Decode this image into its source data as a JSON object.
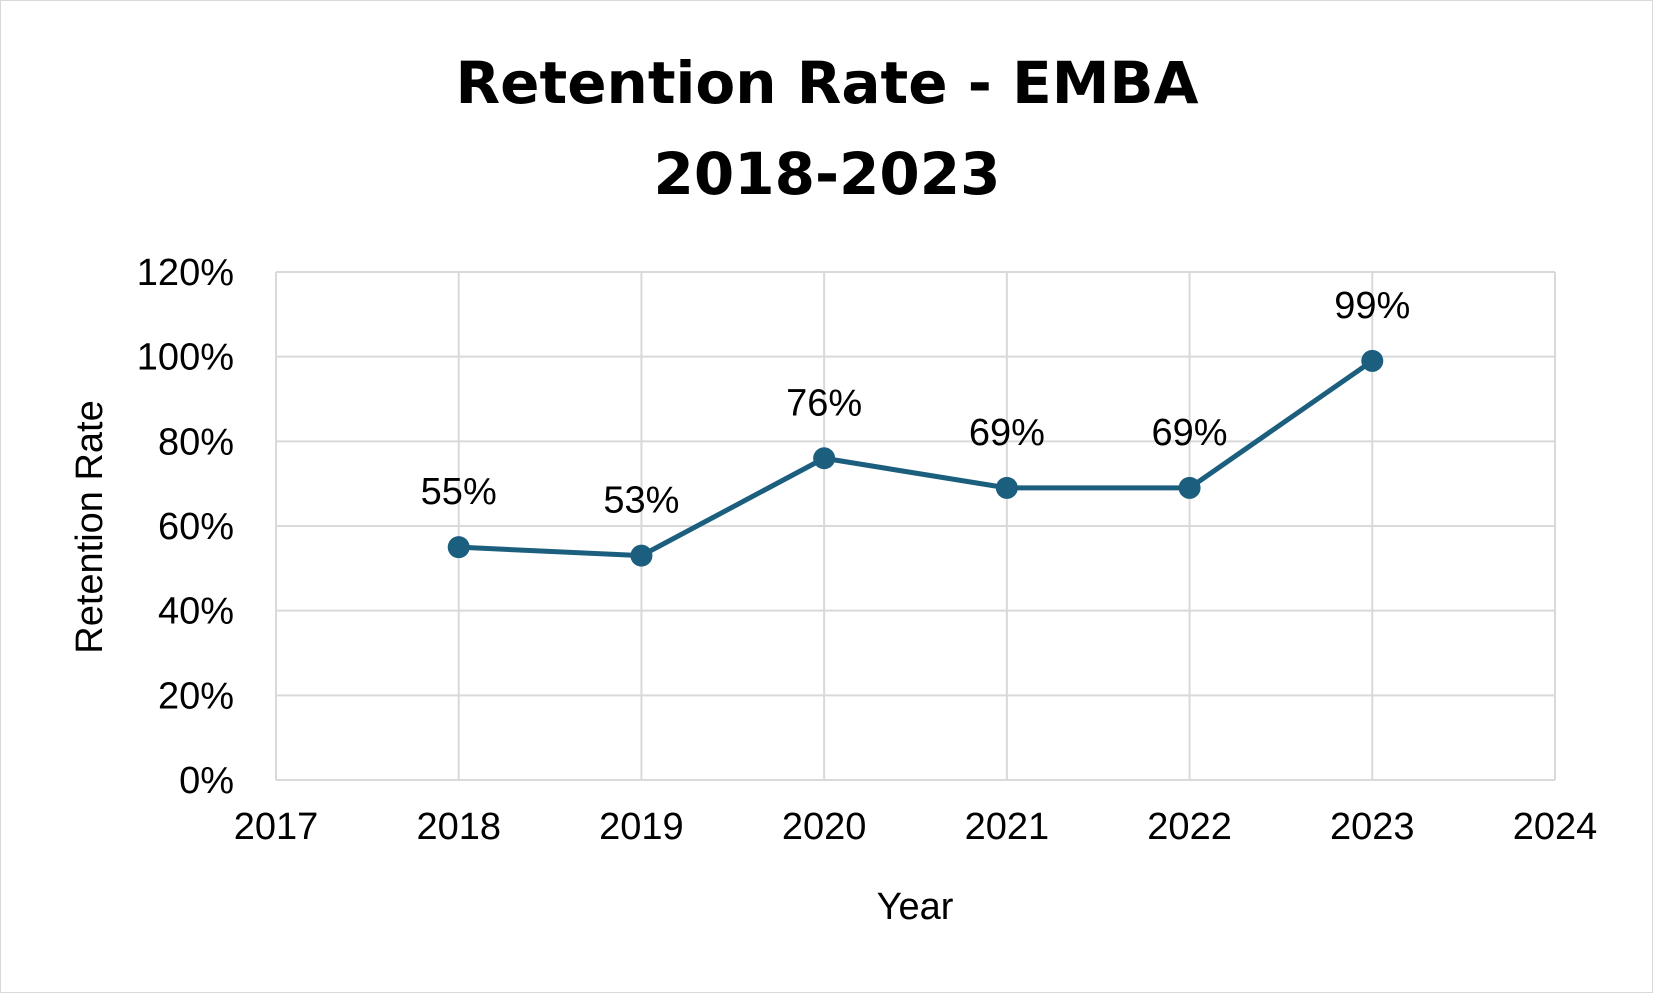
{
  "chart_data": {
    "type": "line",
    "title": [
      "Retention Rate - EMBA",
      "2018-2023"
    ],
    "xlabel": "Year",
    "ylabel": "Retention Rate",
    "x": [
      2018,
      2019,
      2020,
      2021,
      2022,
      2023
    ],
    "series": [
      {
        "values": [
          0.55,
          0.53,
          0.76,
          0.69,
          0.69,
          0.99
        ],
        "data_labels": [
          "55%",
          "53%",
          "76%",
          "69%",
          "69%",
          "99%"
        ],
        "color": "#1b5e7e"
      }
    ],
    "xlim": [
      2017,
      2024
    ],
    "ylim": [
      0,
      1.2
    ],
    "x_ticks": [
      "2017",
      "2018",
      "2019",
      "2020",
      "2021",
      "2022",
      "2023",
      "2024"
    ],
    "y_ticks": [
      "0%",
      "20%",
      "40%",
      "60%",
      "80%",
      "100%",
      "120%"
    ],
    "grid": true,
    "gridline_color": "#d9d9d9",
    "legend": "none"
  }
}
